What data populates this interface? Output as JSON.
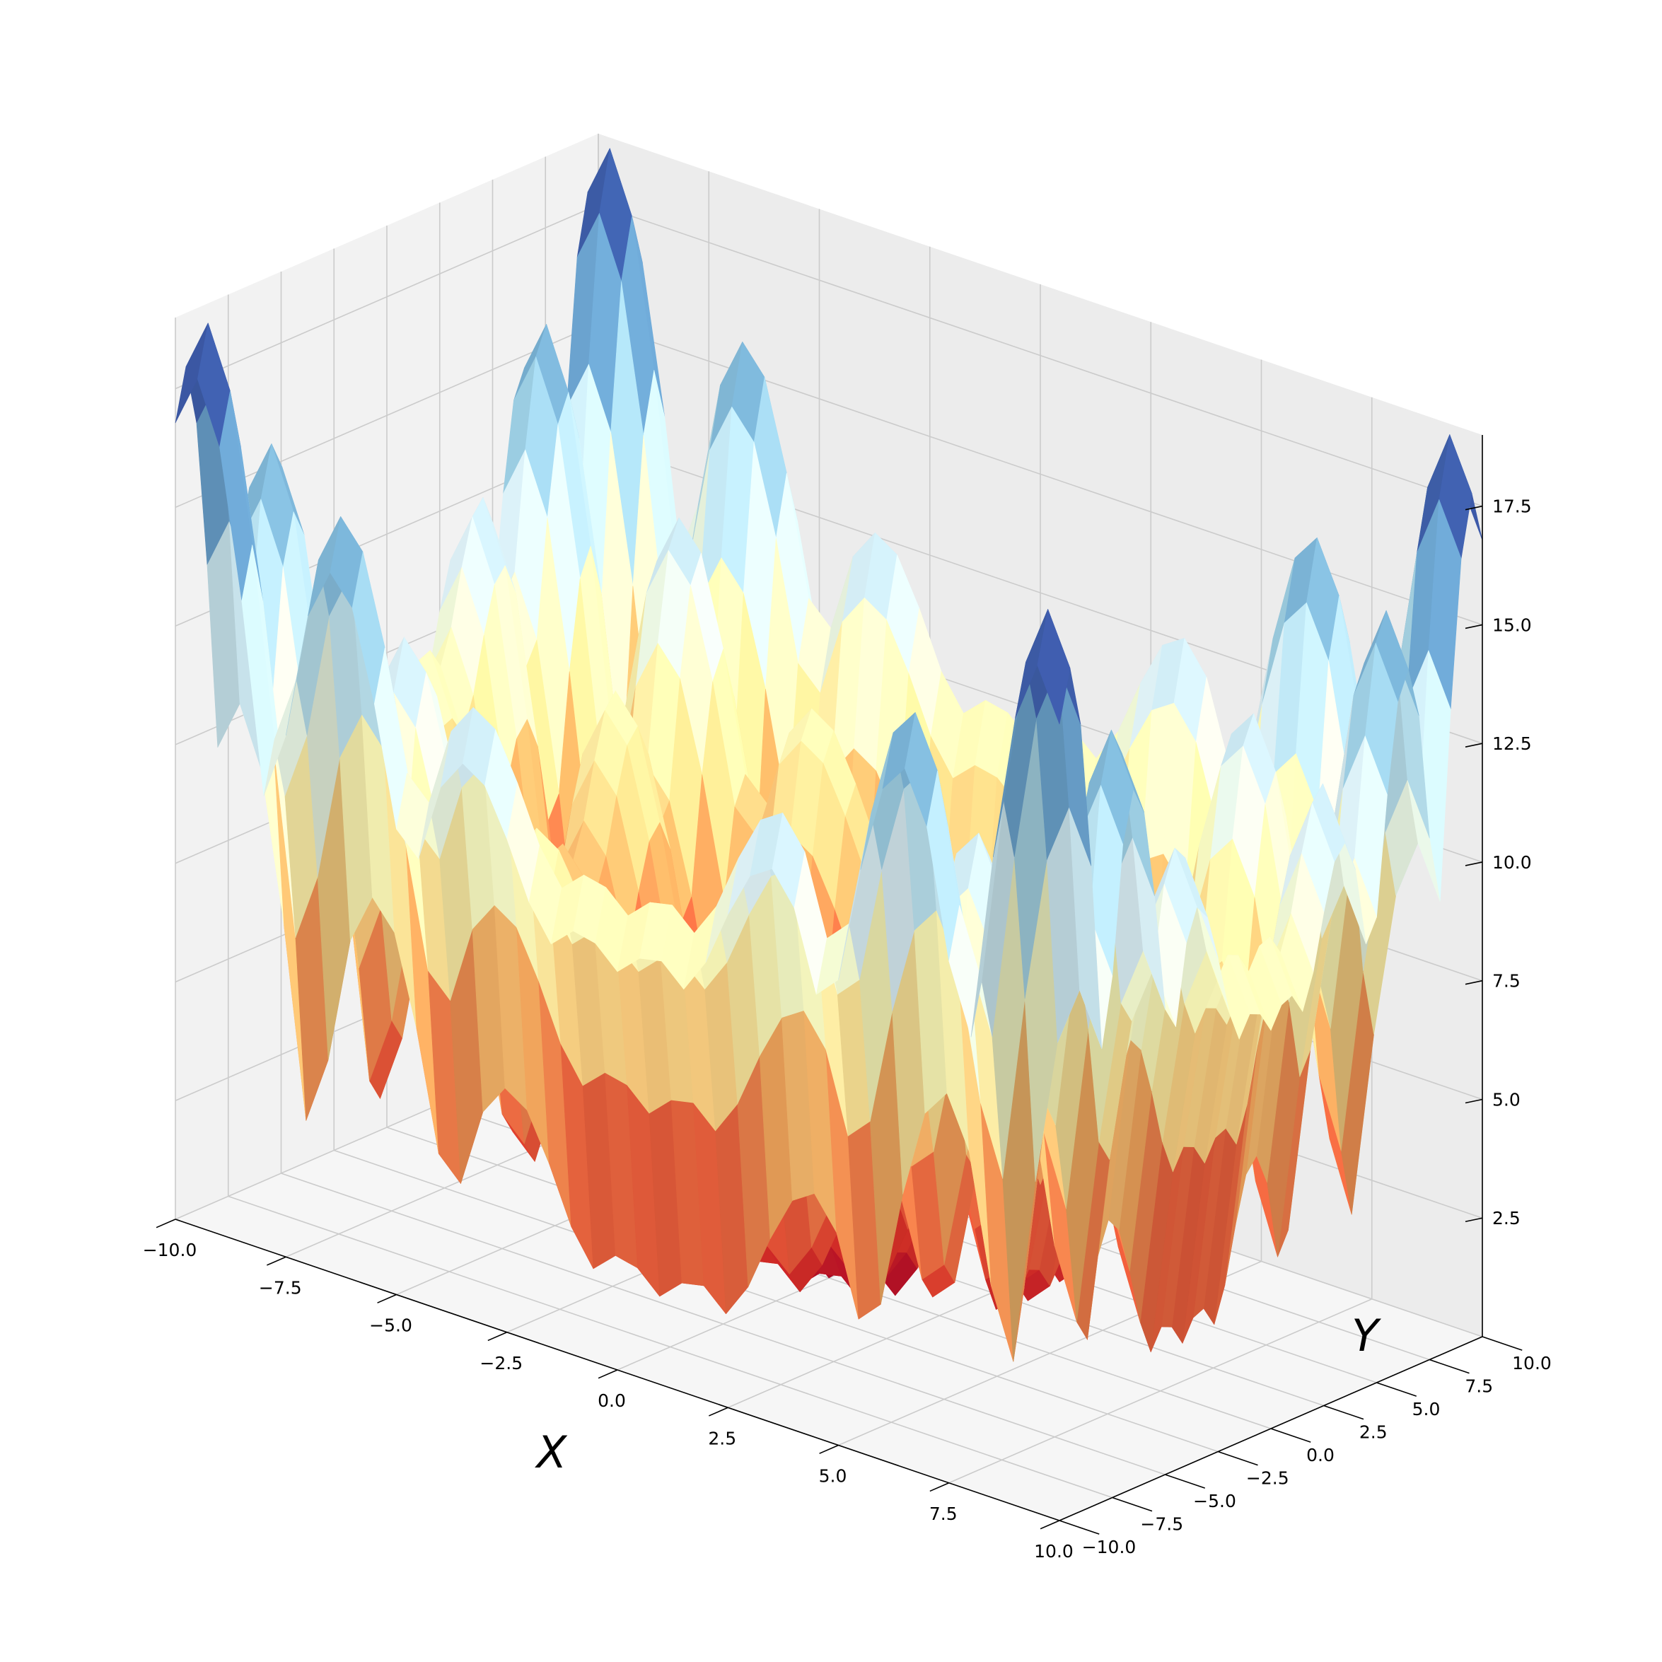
{
  "chart_data": {
    "type": "surface3d",
    "title": "",
    "xlabel": "X",
    "ylabel": "Y",
    "zlabel": "",
    "xlim": [
      -10.0,
      10.0
    ],
    "ylim": [
      -10.0,
      10.0
    ],
    "zlim": [
      0.0,
      19.0
    ],
    "x_ticks": [
      "−10.0",
      "−7.5",
      "−5.0",
      "−2.5",
      "0.0",
      "2.5",
      "5.0",
      "7.5",
      "10.0"
    ],
    "y_ticks": [
      "−10.0",
      "−7.5",
      "−5.0",
      "−2.5",
      "0.0",
      "2.5",
      "5.0",
      "7.5",
      "10.0"
    ],
    "z_ticks": [
      "2.5",
      "5.0",
      "7.5",
      "10.0",
      "12.5",
      "15.0",
      "17.5"
    ],
    "grid": true,
    "colormap": "RdYlBu",
    "grid_resolution": 41,
    "surface_function": "|x·cos(x)| + |y·cos(y)| (approx.)",
    "surface_z_range": [
      0.0,
      18.9
    ],
    "peaks": [
      {
        "x": -9.6,
        "y": -9.6,
        "z": 18.9
      },
      {
        "x": -9.6,
        "y": 9.6,
        "z": 18.9
      },
      {
        "x": 9.6,
        "y": -9.6,
        "z": 18.9
      },
      {
        "x": 9.6,
        "y": 9.6,
        "z": 18.9
      }
    ],
    "colors": {
      "pane_left": "#f2f2f2",
      "pane_right": "#ececec",
      "pane_floor": "#f6f6f6",
      "gridline": "#cbcbcb",
      "axis_line": "#000000",
      "colormap_stops": [
        "#a50026",
        "#d73027",
        "#f46d43",
        "#fdae61",
        "#fee090",
        "#ffffbf",
        "#e0f3f8",
        "#abd9e9",
        "#74add1",
        "#4575b4",
        "#313695"
      ]
    }
  }
}
